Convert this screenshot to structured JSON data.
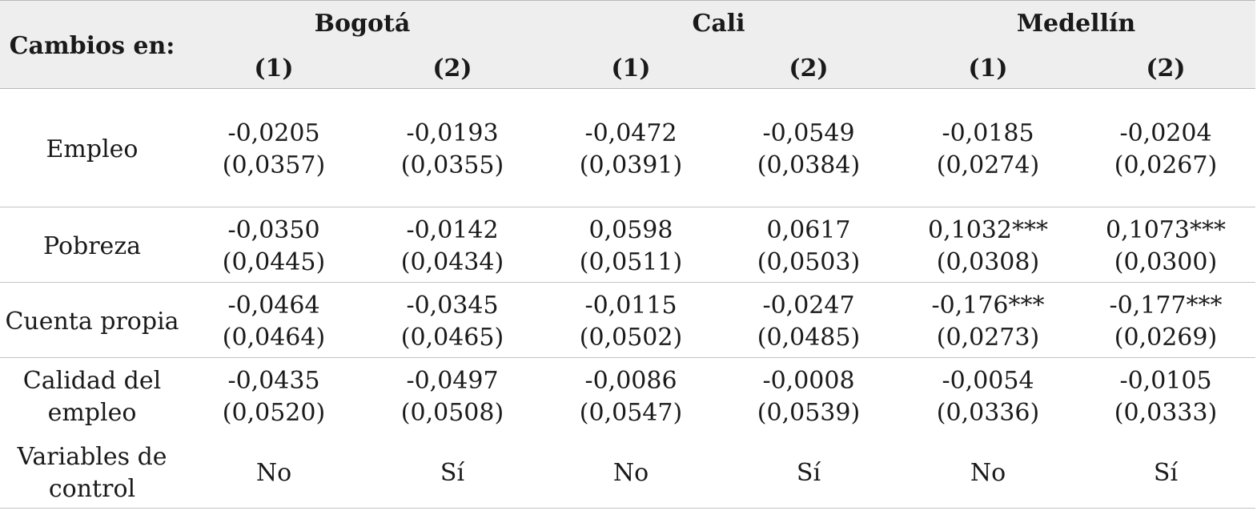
{
  "table": {
    "corner": "Cambios en:",
    "cities": [
      "Bogotá",
      "Cali",
      "Medellín"
    ],
    "models": [
      "(1)",
      "(2)",
      "(1)",
      "(2)",
      "(1)",
      "(2)"
    ],
    "rows": [
      {
        "label": "Empleo",
        "coef": [
          "-0,0205",
          "-0,0193",
          "-0,0472",
          "-0,0549",
          "-0,0185",
          "-0,0204"
        ],
        "se": [
          "(0,0357)",
          "(0,0355)",
          "(0,0391)",
          "(0,0384)",
          "(0,0274)",
          "(0,0267)"
        ]
      },
      {
        "label": "Pobreza",
        "coef": [
          "-0,0350",
          "-0,0142",
          "0,0598",
          "0,0617",
          "0,1032***",
          "0,1073***"
        ],
        "se": [
          "(0,0445)",
          "(0,0434)",
          "(0,0511)",
          "(0,0503)",
          "(0,0308)",
          "(0,0300)"
        ]
      },
      {
        "label": "Cuenta propia",
        "coef": [
          "-0,0464",
          "-0,0345",
          "-0,0115",
          "-0,0247",
          "-0,176***",
          "-0,177***"
        ],
        "se": [
          "(0,0464)",
          "(0,0465)",
          "(0,0502)",
          "(0,0485)",
          "(0,0273)",
          "(0,0269)"
        ]
      },
      {
        "label_line1": "Calidad del",
        "label_line2": "empleo",
        "coef": [
          "-0,0435",
          "-0,0497",
          "-0,0086",
          "-0,0008",
          "-0,0054",
          "-0,0105"
        ],
        "se": [
          "(0,0520)",
          "(0,0508)",
          "(0,0547)",
          "(0,0539)",
          "(0,0336)",
          "(0,0333)"
        ]
      }
    ],
    "controls": {
      "label_line1": "Variables de",
      "label_line2": "control",
      "values": [
        "No",
        "Sí",
        "No",
        "Sí",
        "No",
        "Sí"
      ]
    }
  }
}
